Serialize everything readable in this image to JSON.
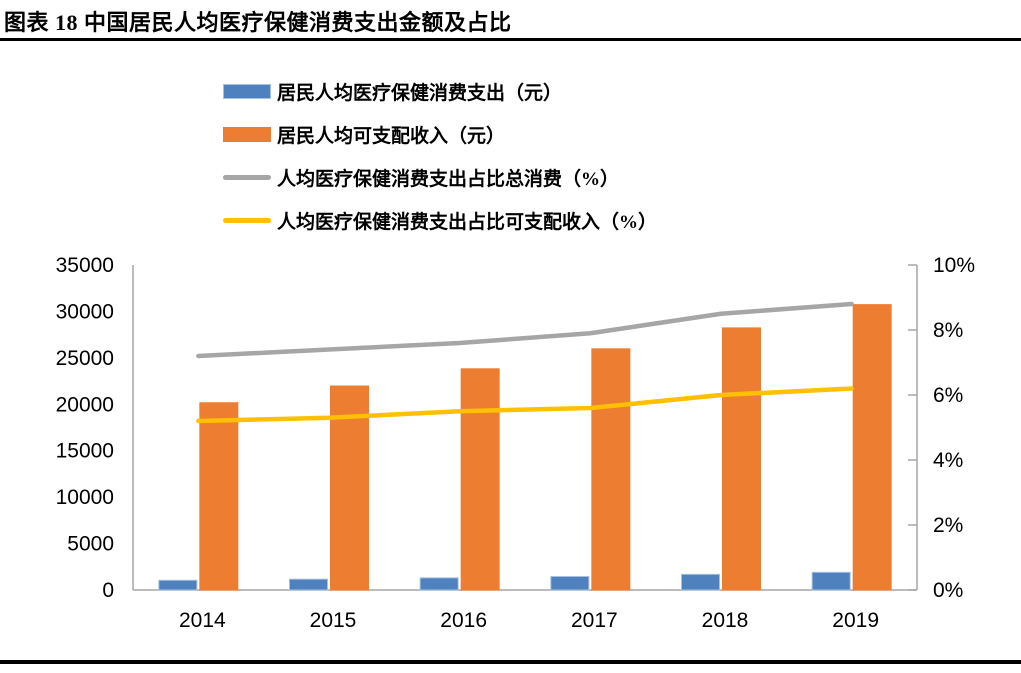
{
  "header": {
    "title": "图表 18 中国居民人均医疗保健消费支出金额及占比"
  },
  "chart_data": {
    "type": "combo",
    "description": "Grouped bars on left axis with two ratio lines on right axis",
    "categories": [
      "2014",
      "2015",
      "2016",
      "2017",
      "2018",
      "2019"
    ],
    "bar_series": [
      {
        "name": "居民人均医疗保健消费支出（元）",
        "axis": "left",
        "color": "#4E81BD",
        "border_color": "#A3C1E0",
        "values": [
          1045,
          1165,
          1307,
          1451,
          1685,
          1902
        ]
      },
      {
        "name": "居民人均可支配收入（元）",
        "axis": "left",
        "color": "#ED7D31",
        "border_color": "#ED7D31",
        "values": [
          20167,
          21966,
          23821,
          25974,
          28228,
          30733
        ]
      }
    ],
    "line_series": [
      {
        "name": "人均医疗保健消费支出占比总消费（%）",
        "axis": "right",
        "color": "#A6A6A6",
        "values": [
          7.2,
          7.4,
          7.6,
          7.9,
          8.5,
          8.8
        ]
      },
      {
        "name": "人均医疗保健消费支出占比可支配收入（%）",
        "axis": "right",
        "color": "#FFC000",
        "values": [
          5.2,
          5.3,
          5.5,
          5.6,
          6.0,
          6.2
        ]
      }
    ],
    "left_axis": {
      "min": 0,
      "max": 35000,
      "step": 5000,
      "tick_labels": [
        "0",
        "5000",
        "10000",
        "15000",
        "20000",
        "25000",
        "30000",
        "35000"
      ]
    },
    "right_axis": {
      "min": 0,
      "max": 10,
      "step": 2,
      "tick_labels": [
        "0%",
        "2%",
        "4%",
        "6%",
        "8%",
        "10%"
      ]
    },
    "legend_position": "top-center",
    "grid": false,
    "axis_color": "#A6A6A6",
    "tick_label_color": "#000000"
  }
}
